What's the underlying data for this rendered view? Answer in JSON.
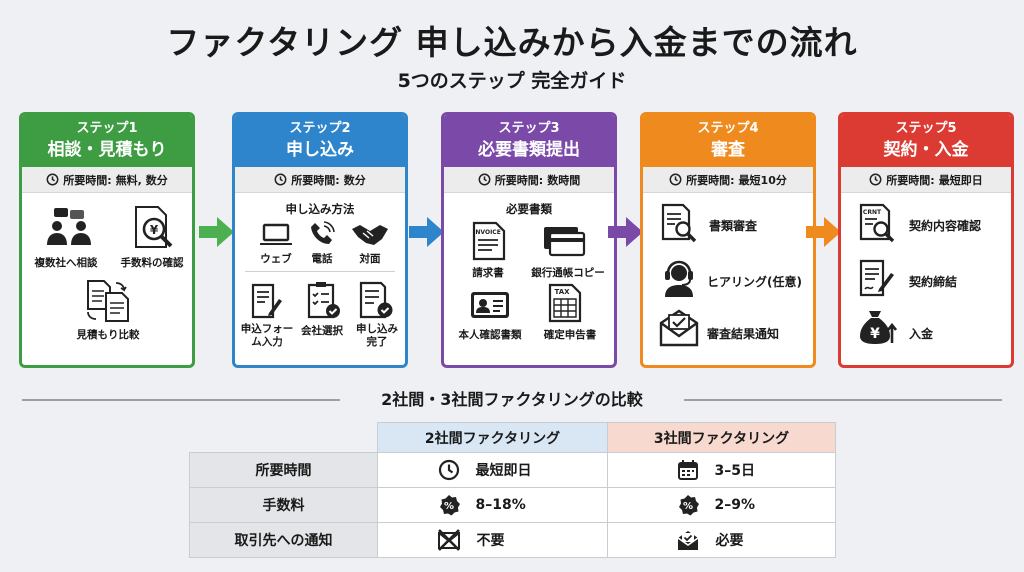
{
  "title": "ファクタリング 申し込みから入金までの流れ",
  "subtitle": "5つのステップ 完全ガイド",
  "time_label": "所要時間:",
  "steps": [
    {
      "number": "ステップ1",
      "name": "相談・見積もり",
      "time": "無料, 数分",
      "color": "#3e9c43",
      "items": [
        "複数社へ相談",
        "手数料の確認",
        "見積もり比較"
      ]
    },
    {
      "number": "ステップ2",
      "name": "申し込み",
      "time": "数分",
      "color": "#2e85cc",
      "heading": "申し込み方法",
      "methods": [
        "ウェブ",
        "電話",
        "対面"
      ],
      "items": [
        "申込フォー\nム入力",
        "会社選択",
        "申し込み\n完了"
      ]
    },
    {
      "number": "ステップ3",
      "name": "必要書類提出",
      "time": "数時間",
      "color": "#7b4aa8",
      "heading": "必要書類",
      "items": [
        "請求書",
        "銀行通帳コピー",
        "本人確認書類",
        "確定申告書"
      ],
      "icon_texts": {
        "invoice": "INVOICE",
        "tax": "TAX"
      }
    },
    {
      "number": "ステップ4",
      "name": "審査",
      "time": "最短10分",
      "color": "#ef8a1e",
      "items": [
        "書類審査",
        "ヒアリング(任意)",
        "審査結果通知"
      ]
    },
    {
      "number": "ステップ5",
      "name": "契約・入金",
      "time": "最短即日",
      "color": "#dc3b33",
      "items": [
        "契約内容確認",
        "契約締結",
        "入金"
      ],
      "icon_texts": {
        "contract": "CRNT",
        "money": "¥"
      }
    }
  ],
  "comparison": {
    "title": "2社間・3社間ファクタリングの比較",
    "columns": [
      "2社間ファクタリング",
      "3社間ファクタリング"
    ],
    "column_colors": [
      "#d9e7f5",
      "#f8d9cf"
    ],
    "rows": [
      {
        "label": "所要時間",
        "two": "最短即日",
        "three": "3–5日",
        "icons": [
          "clock-icon",
          "calendar-icon"
        ]
      },
      {
        "label": "手数料",
        "two": "8–18%",
        "three": "2–9%",
        "icons": [
          "percent-badge-icon",
          "percent-badge-icon"
        ]
      },
      {
        "label": "取引先への通知",
        "two": "不要",
        "three": "必要",
        "icons": [
          "no-mail-icon",
          "mail-check-icon"
        ]
      }
    ]
  }
}
